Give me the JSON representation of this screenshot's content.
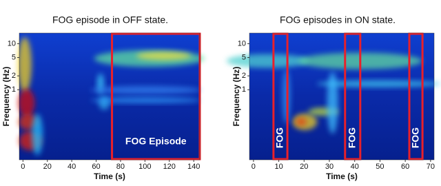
{
  "chart_data": [
    {
      "type": "spectrogram",
      "title": "FOG episode in OFF state.",
      "x_label": "Time (s)",
      "y_label": "Frequency (Hz)",
      "xlim": [
        -3,
        145
      ],
      "xticks": [
        0,
        20,
        40,
        60,
        80,
        100,
        120,
        140
      ],
      "ylim": [
        0.03,
        17
      ],
      "yticks": [
        1,
        2,
        5,
        10
      ],
      "y_scale": "log",
      "box_color": "#e8202a",
      "regions": [
        {
          "x": [
            73,
            145
          ],
          "label": "FOG Episode"
        }
      ]
    },
    {
      "type": "spectrogram",
      "title": "FOG episodes in ON state.",
      "x_label": "Time (s)",
      "y_label": "Frequency (Hz)",
      "xlim": [
        -1.6,
        71.4
      ],
      "xticks": [
        0,
        10,
        20,
        30,
        40,
        50,
        60,
        70
      ],
      "ylim": [
        0.03,
        17
      ],
      "yticks": [
        1,
        2,
        5,
        10
      ],
      "y_scale": "log",
      "box_color": "#e8202a",
      "regions": [
        {
          "x": [
            7.9,
            13.4
          ],
          "label": "FOG"
        },
        {
          "x": [
            36.2,
            42.2
          ],
          "label": "FOG"
        },
        {
          "x": [
            61.6,
            66.8
          ],
          "label": "FOG"
        }
      ]
    }
  ]
}
